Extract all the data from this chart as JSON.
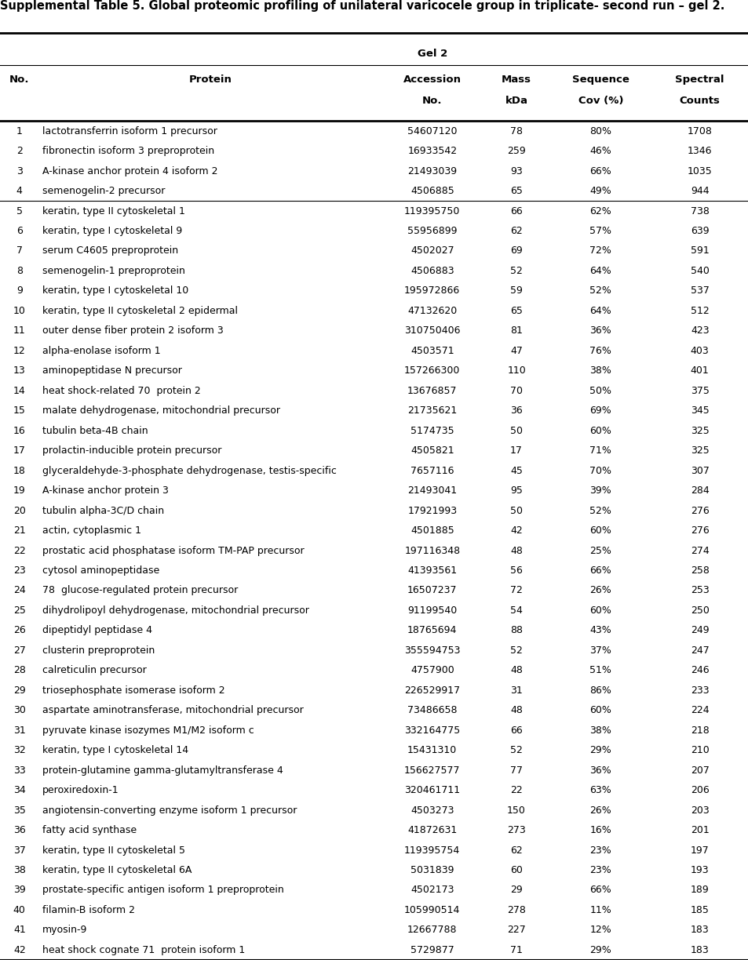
{
  "title": "Supplemental Table 5. Global proteomic profiling of unilateral varicocele group in triplicate- second run – gel 2.",
  "rows": [
    [
      1,
      "lactotransferrin isoform 1 precursor",
      "54607120",
      78,
      "80%",
      1708
    ],
    [
      2,
      "fibronectin isoform 3 preproprotein",
      "16933542",
      259,
      "46%",
      1346
    ],
    [
      3,
      "A-kinase anchor protein 4 isoform 2",
      "21493039",
      93,
      "66%",
      1035
    ],
    [
      4,
      "semenogelin-2 precursor",
      "4506885",
      65,
      "49%",
      944
    ],
    [
      5,
      "keratin, type II cytoskeletal 1",
      "119395750",
      66,
      "62%",
      738
    ],
    [
      6,
      "keratin, type I cytoskeletal 9",
      "55956899",
      62,
      "57%",
      639
    ],
    [
      7,
      "serum C4605 preproprotein",
      "4502027",
      69,
      "72%",
      591
    ],
    [
      8,
      "semenogelin-1 preproprotein",
      "4506883",
      52,
      "64%",
      540
    ],
    [
      9,
      "keratin, type I cytoskeletal 10",
      "195972866",
      59,
      "52%",
      537
    ],
    [
      10,
      "keratin, type II cytoskeletal 2 epidermal",
      "47132620",
      65,
      "64%",
      512
    ],
    [
      11,
      "outer dense fiber protein 2 isoform 3",
      "310750406",
      81,
      "36%",
      423
    ],
    [
      12,
      "alpha-enolase isoform 1",
      "4503571",
      47,
      "76%",
      403
    ],
    [
      13,
      "aminopeptidase N precursor",
      "157266300",
      110,
      "38%",
      401
    ],
    [
      14,
      "heat shock-related 70  protein 2",
      "13676857",
      70,
      "50%",
      375
    ],
    [
      15,
      "malate dehydrogenase, mitochondrial precursor",
      "21735621",
      36,
      "69%",
      345
    ],
    [
      16,
      "tubulin beta-4B chain",
      "5174735",
      50,
      "60%",
      325
    ],
    [
      17,
      "prolactin-inducible protein precursor",
      "4505821",
      17,
      "71%",
      325
    ],
    [
      18,
      "glyceraldehyde-3-phosphate dehydrogenase, testis-specific",
      "7657116",
      45,
      "70%",
      307
    ],
    [
      19,
      "A-kinase anchor protein 3",
      "21493041",
      95,
      "39%",
      284
    ],
    [
      20,
      "tubulin alpha-3C/D chain",
      "17921993",
      50,
      "52%",
      276
    ],
    [
      21,
      "actin, cytoplasmic 1",
      "4501885",
      42,
      "60%",
      276
    ],
    [
      22,
      "prostatic acid phosphatase isoform TM-PAP precursor",
      "197116348",
      48,
      "25%",
      274
    ],
    [
      23,
      "cytosol aminopeptidase",
      "41393561",
      56,
      "66%",
      258
    ],
    [
      24,
      "78  glucose-regulated protein precursor",
      "16507237",
      72,
      "26%",
      253
    ],
    [
      25,
      "dihydrolipoyl dehydrogenase, mitochondrial precursor",
      "91199540",
      54,
      "60%",
      250
    ],
    [
      26,
      "dipeptidyl peptidase 4",
      "18765694",
      88,
      "43%",
      249
    ],
    [
      27,
      "clusterin preproprotein",
      "355594753",
      52,
      "37%",
      247
    ],
    [
      28,
      "calreticulin precursor",
      "4757900",
      48,
      "51%",
      246
    ],
    [
      29,
      "triosephosphate isomerase isoform 2",
      "226529917",
      31,
      "86%",
      233
    ],
    [
      30,
      "aspartate aminotransferase, mitochondrial precursor",
      "73486658",
      48,
      "60%",
      224
    ],
    [
      31,
      "pyruvate kinase isozymes M1/M2 isoform c",
      "332164775",
      66,
      "38%",
      218
    ],
    [
      32,
      "keratin, type I cytoskeletal 14",
      "15431310",
      52,
      "29%",
      210
    ],
    [
      33,
      "protein-glutamine gamma-glutamyltransferase 4",
      "156627577",
      77,
      "36%",
      207
    ],
    [
      34,
      "peroxiredoxin-1",
      "320461711",
      22,
      "63%",
      206
    ],
    [
      35,
      "angiotensin-converting enzyme isoform 1 precursor",
      "4503273",
      150,
      "26%",
      203
    ],
    [
      36,
      "fatty acid synthase",
      "41872631",
      273,
      "16%",
      201
    ],
    [
      37,
      "keratin, type II cytoskeletal 5",
      "119395754",
      62,
      "23%",
      197
    ],
    [
      38,
      "keratin, type II cytoskeletal 6A",
      "5031839",
      60,
      "23%",
      193
    ],
    [
      39,
      "prostate-specific antigen isoform 1 preproprotein",
      "4502173",
      29,
      "66%",
      189
    ],
    [
      40,
      "filamin-B isoform 2",
      "105990514",
      278,
      "11%",
      185
    ],
    [
      41,
      "myosin-9",
      "12667788",
      227,
      "12%",
      183
    ],
    [
      42,
      "heat shock cognate 71  protein isoform 1",
      "5729877",
      71,
      "29%",
      183
    ]
  ],
  "separator_after_row": 4,
  "background_color": "#ffffff",
  "text_color": "#000000",
  "font_size": 9.0,
  "header_font_size": 9.5,
  "title_font_size": 10.5
}
